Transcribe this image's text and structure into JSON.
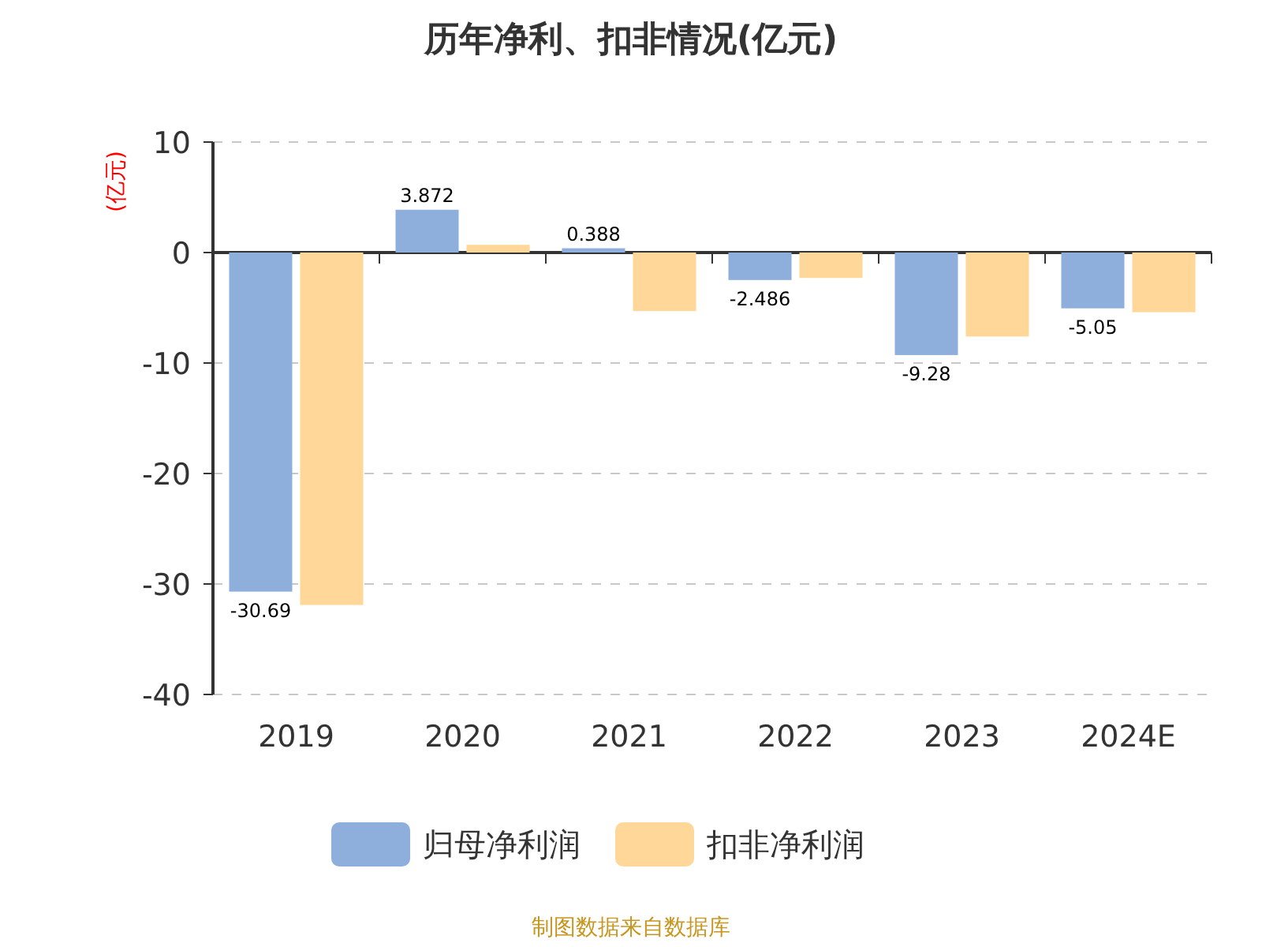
{
  "chart_data": {
    "type": "bar",
    "title": "历年净利、扣非情况(亿元)",
    "ylabel": "(亿元)",
    "categories": [
      "2019",
      "2020",
      "2021",
      "2022",
      "2023",
      "2024E"
    ],
    "series": [
      {
        "name": "归母净利润",
        "color": "#8eaedb",
        "values": [
          -30.69,
          3.872,
          0.388,
          -2.486,
          -9.28,
          -5.05
        ],
        "value_labels": [
          "-30.69",
          "3.872",
          "0.388",
          "-2.486",
          "-9.28",
          "-5.05"
        ]
      },
      {
        "name": "扣非净利润",
        "color": "#ffd899",
        "values": [
          -31.9,
          0.7,
          -5.3,
          -2.3,
          -7.6,
          -5.4
        ]
      }
    ],
    "ylim": [
      -40,
      10
    ],
    "yticks": [
      -40,
      -30,
      -20,
      -10,
      0,
      10
    ],
    "grid": "y",
    "legend": "bottom",
    "annotations": [
      "制图数据来自数据库"
    ]
  }
}
